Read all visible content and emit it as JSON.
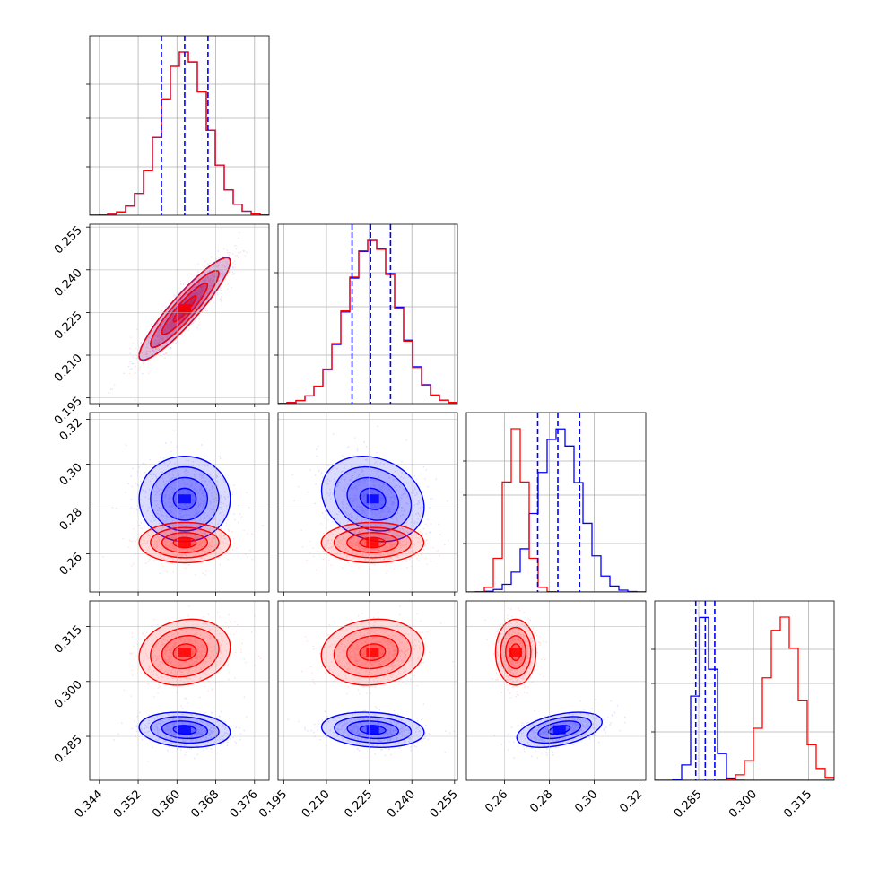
{
  "colors": {
    "blue": "#0000ff",
    "red": "#ff0000",
    "grid": "#b0b0b0"
  },
  "chart_data": {
    "type": "corner",
    "grid": true,
    "parameters": [
      {
        "range": [
          0.342,
          0.379
        ],
        "ticks": [
          0.344,
          0.352,
          0.36,
          0.368,
          0.376
        ],
        "tick_labels": [
          "0.344",
          "0.352",
          "0.360",
          "0.368",
          "0.376"
        ]
      },
      {
        "range": [
          0.193,
          0.256
        ],
        "ticks": [
          0.195,
          0.21,
          0.225,
          0.24,
          0.255
        ],
        "tick_labels": [
          "0.195",
          "0.210",
          "0.225",
          "0.240",
          "0.255"
        ]
      },
      {
        "range": [
          0.243,
          0.323
        ],
        "ticks": [
          0.26,
          0.28,
          0.3,
          0.32
        ],
        "tick_labels": [
          "0.26",
          "0.28",
          "0.30",
          "0.32"
        ]
      },
      {
        "range": [
          0.273,
          0.322
        ],
        "ticks": [
          0.285,
          0.3,
          0.315
        ],
        "tick_labels": [
          "0.285",
          "0.300",
          "0.315"
        ]
      }
    ],
    "series": [
      {
        "color": "blue",
        "mean": [
          0.3616,
          0.2263,
          0.2845,
          0.2868
        ],
        "sd": [
          0.0047,
          0.009,
          0.0095,
          0.0024
        ],
        "corr": [
          [
            1,
            0.92,
            0.0,
            -0.15
          ],
          [
            0.92,
            1,
            -0.2,
            -0.15
          ],
          [
            0.0,
            -0.2,
            1,
            0.45
          ],
          [
            -0.15,
            -0.15,
            0.45,
            1
          ]
        ]
      },
      {
        "color": "red",
        "mean": [
          0.3616,
          0.2262,
          0.265,
          0.308
        ],
        "sd": [
          0.0047,
          0.009,
          0.0045,
          0.0045
        ],
        "corr": [
          [
            1,
            0.92,
            0.0,
            0.15
          ],
          [
            0.92,
            1,
            0.0,
            0.1
          ],
          [
            0.0,
            0.0,
            1,
            0.0
          ],
          [
            0.15,
            0.1,
            0.0,
            1
          ]
        ]
      }
    ],
    "quantile_lines": {
      "color": "blue",
      "values": [
        [
          0.3568,
          0.3616,
          0.3664
        ],
        [
          0.219,
          0.2255,
          0.2325
        ],
        [
          0.2748,
          0.2838,
          0.2935
        ],
        [
          0.2842,
          0.2868,
          0.2894
        ]
      ]
    }
  }
}
